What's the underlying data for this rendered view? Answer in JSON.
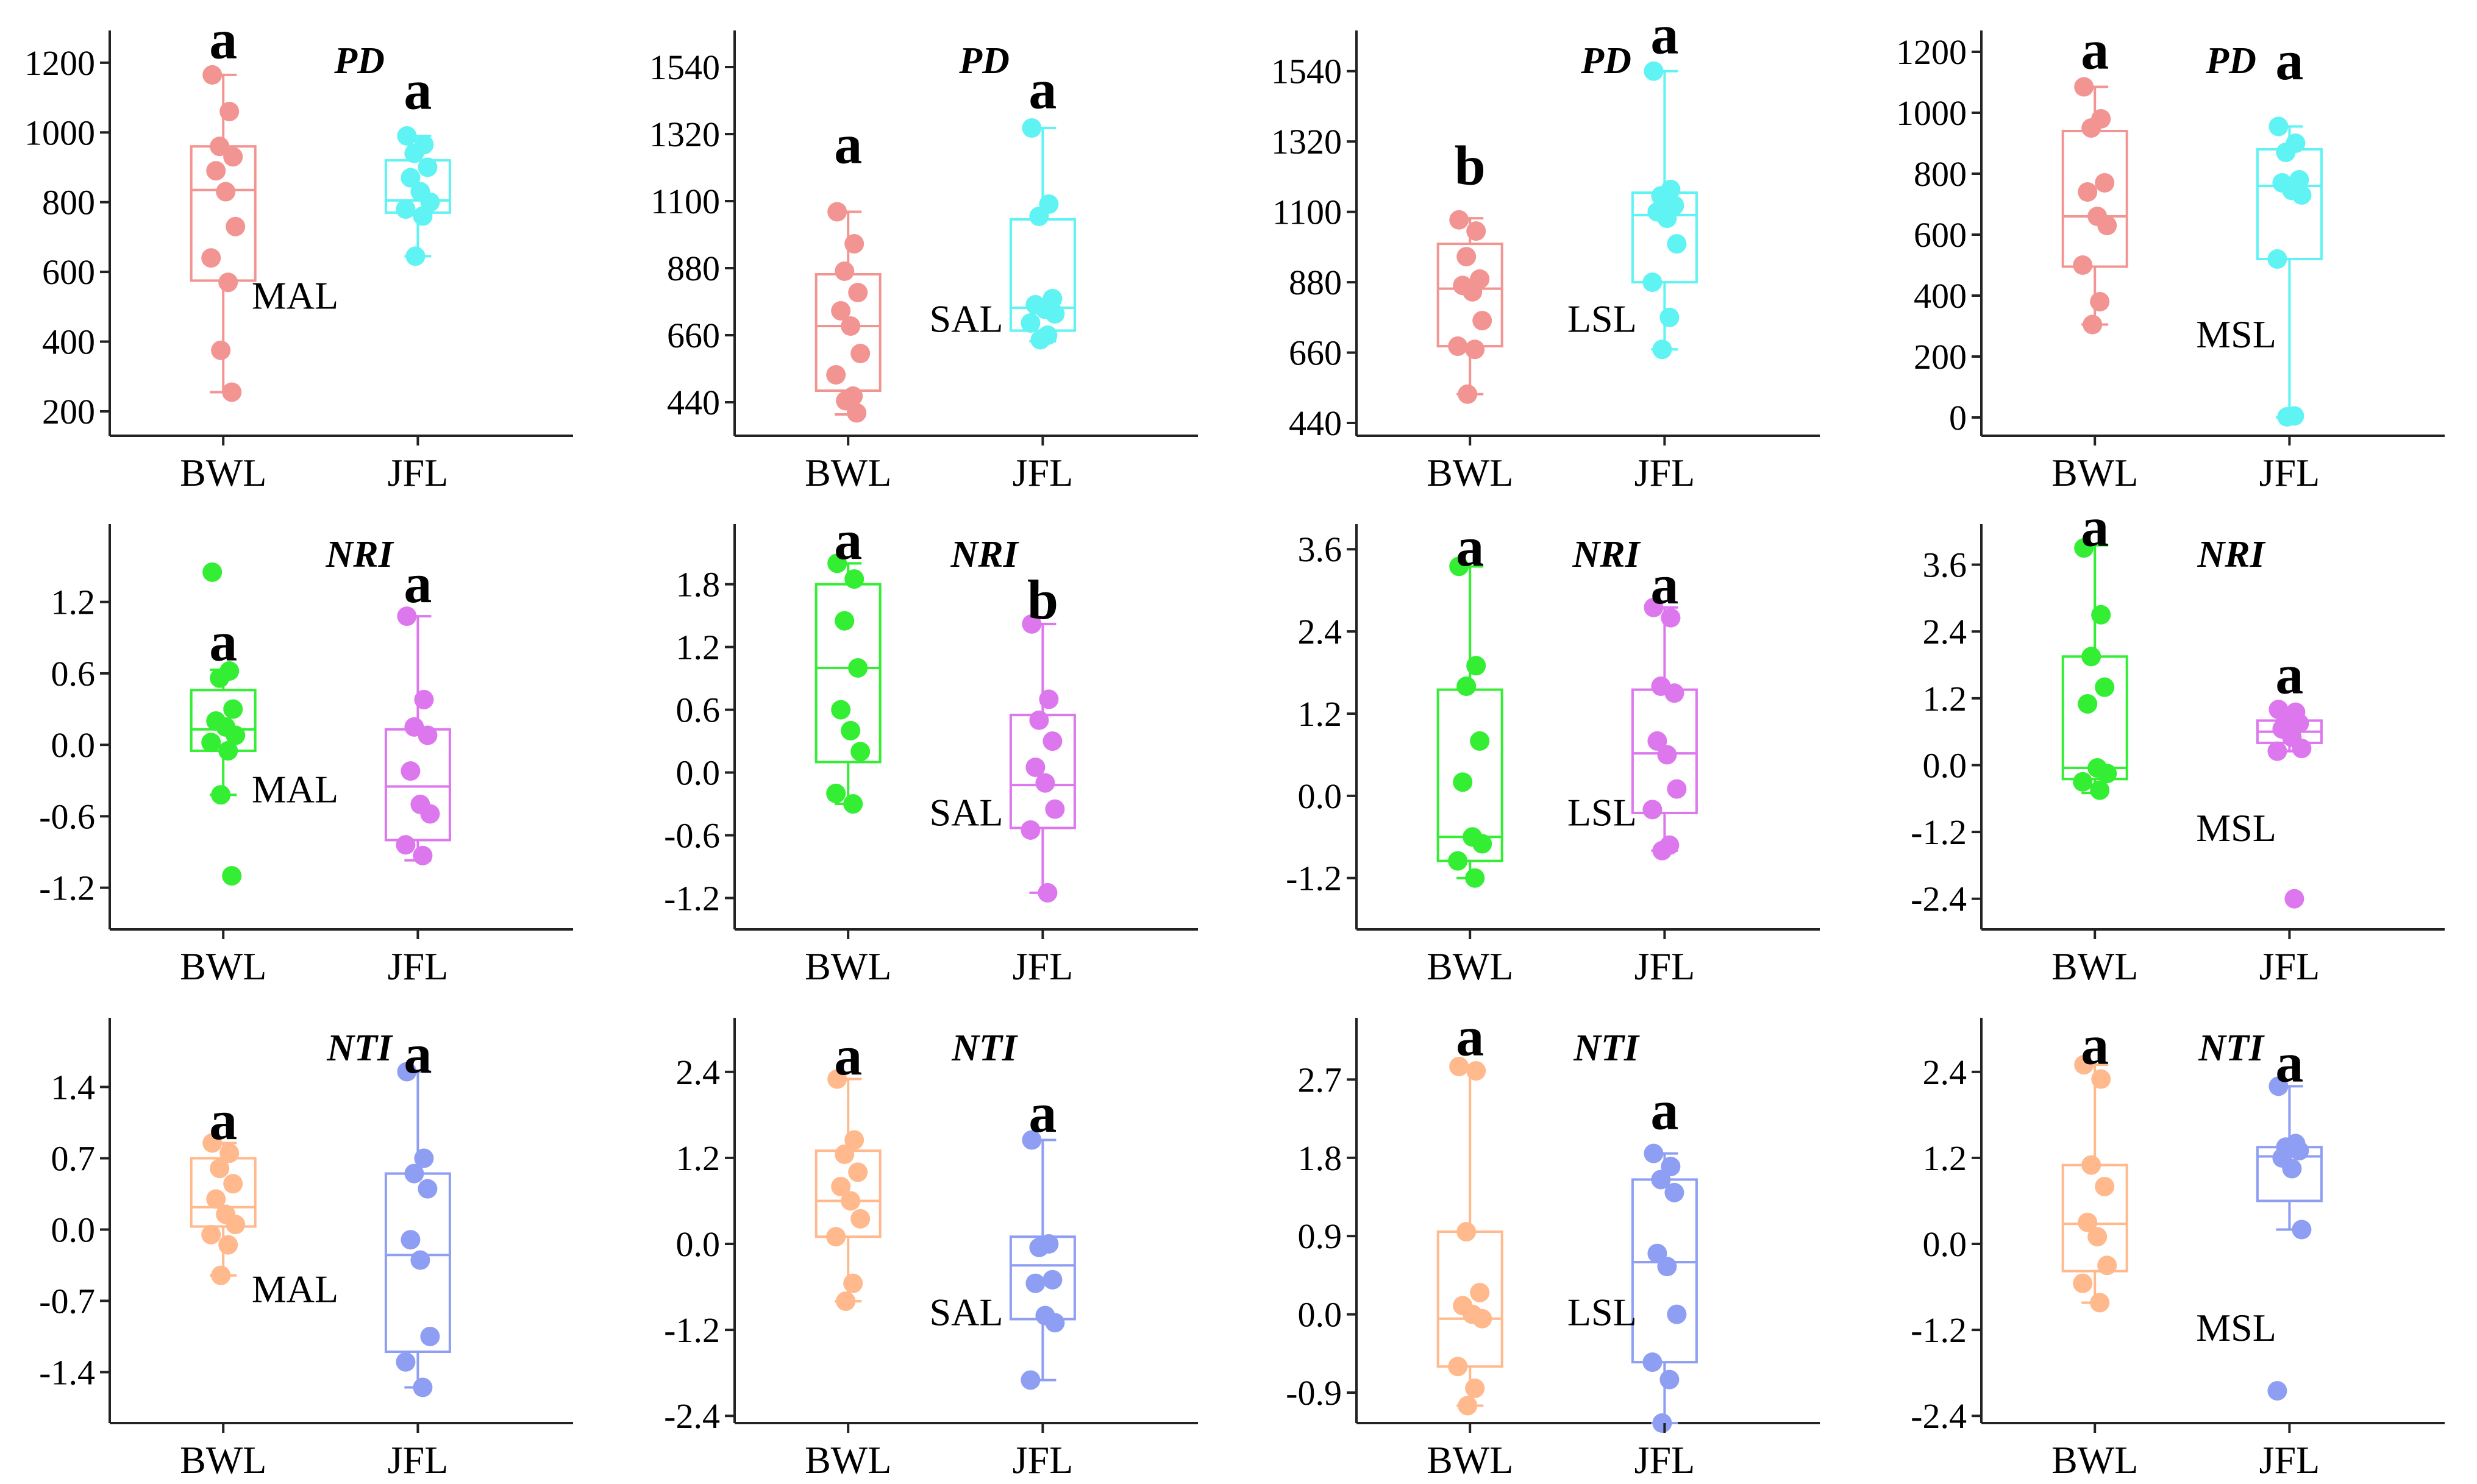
{
  "chart_data": [
    {
      "type": "box",
      "metric": "PD",
      "site": "MAL",
      "categories": [
        "BWL",
        "JFL"
      ],
      "ylim": [
        130,
        1240
      ],
      "yticks": [
        200,
        400,
        600,
        800,
        1000,
        1200
      ],
      "series": [
        {
          "name": "BWL",
          "color": "#F29592",
          "q1": 575,
          "median": 835,
          "q3": 960,
          "min": 255,
          "max": 1165,
          "points": [
            1165,
            1060,
            960,
            930,
            890,
            830,
            730,
            640,
            570,
            375,
            255
          ],
          "letter": "a",
          "letter_y": 1230
        },
        {
          "name": "JFL",
          "color": "#5FF3F3",
          "q1": 770,
          "median": 805,
          "q3": 920,
          "min": 645,
          "max": 990,
          "points": [
            990,
            965,
            940,
            900,
            870,
            830,
            800,
            780,
            760,
            645
          ],
          "letter": "a",
          "letter_y": 1085
        }
      ]
    },
    {
      "type": "box",
      "metric": "PD",
      "site": "SAL",
      "categories": [
        "BWL",
        "JFL"
      ],
      "ylim": [
        330,
        1600
      ],
      "yticks": [
        440,
        660,
        880,
        1100,
        1320,
        1540
      ],
      "series": [
        {
          "name": "BWL",
          "color": "#F29592",
          "q1": 478,
          "median": 690,
          "q3": 860,
          "min": 400,
          "max": 1065,
          "points": [
            1065,
            960,
            870,
            800,
            740,
            690,
            600,
            530,
            460,
            445,
            405
          ],
          "letter": "a",
          "letter_y": 1245
        },
        {
          "name": "JFL",
          "color": "#5FF3F3",
          "q1": 675,
          "median": 750,
          "q3": 1040,
          "min": 640,
          "max": 1340,
          "points": [
            1340,
            1090,
            1050,
            780,
            760,
            745,
            730,
            700,
            660,
            645
          ],
          "letter": "a",
          "letter_y": 1425
        }
      ]
    },
    {
      "type": "box",
      "metric": "PD",
      "site": "LSL",
      "categories": [
        "BWL",
        "JFL"
      ],
      "ylim": [
        400,
        1610
      ],
      "yticks": [
        440,
        660,
        880,
        1100,
        1320,
        1540
      ],
      "series": [
        {
          "name": "BWL",
          "color": "#F29592",
          "q1": 680,
          "median": 860,
          "q3": 1000,
          "min": 530,
          "max": 1080,
          "points": [
            1075,
            1040,
            960,
            890,
            870,
            850,
            760,
            680,
            670,
            530
          ],
          "letter": "b",
          "letter_y": 1205
        },
        {
          "name": "JFL",
          "color": "#5FF3F3",
          "q1": 880,
          "median": 1090,
          "q3": 1160,
          "min": 670,
          "max": 1540,
          "points": [
            1540,
            1170,
            1150,
            1120,
            1100,
            1080,
            1000,
            880,
            770,
            670
          ],
          "letter": "a",
          "letter_y": 1615
        }
      ]
    },
    {
      "type": "box",
      "metric": "PD",
      "site": "MSL",
      "categories": [
        "BWL",
        "JFL"
      ],
      "ylim": [
        -60,
        1210
      ],
      "yticks": [
        0,
        200,
        400,
        600,
        800,
        1000,
        1200
      ],
      "series": [
        {
          "name": "BWL",
          "color": "#F29592",
          "q1": 495,
          "median": 660,
          "q3": 940,
          "min": 305,
          "max": 1085,
          "points": [
            1085,
            980,
            950,
            770,
            740,
            660,
            630,
            500,
            380,
            305
          ],
          "letter": "a",
          "letter_y": 1165
        },
        {
          "name": "JFL",
          "color": "#5FF3F3",
          "q1": 520,
          "median": 760,
          "q3": 880,
          "min": 0,
          "max": 955,
          "points": [
            955,
            900,
            870,
            780,
            770,
            745,
            730,
            520,
            5,
            2
          ],
          "letter": "a",
          "letter_y": 1130
        }
      ]
    },
    {
      "type": "box",
      "metric": "NRI",
      "site": "MAL",
      "categories": [
        "BWL",
        "JFL"
      ],
      "ylim": [
        -1.55,
        1.7
      ],
      "yticks": [
        -1.2,
        -0.6,
        0.0,
        0.6,
        1.2
      ],
      "series": [
        {
          "name": "BWL",
          "color": "#33EE33",
          "q1": -0.05,
          "median": 0.13,
          "q3": 0.46,
          "min": -0.42,
          "max": 0.63,
          "points": [
            1.45,
            0.62,
            0.56,
            0.3,
            0.2,
            0.15,
            0.08,
            0.02,
            -0.05,
            -0.42,
            -1.1
          ],
          "letter": "a",
          "letter_y": 0.76
        },
        {
          "name": "JFL",
          "color": "#DD77EE",
          "q1": -0.8,
          "median": -0.35,
          "q3": 0.13,
          "min": -0.97,
          "max": 1.08,
          "points": [
            1.08,
            0.38,
            0.15,
            0.08,
            -0.22,
            -0.5,
            -0.58,
            -0.84,
            -0.93
          ],
          "letter": "a",
          "letter_y": 1.25
        }
      ]
    },
    {
      "type": "box",
      "metric": "NRI",
      "site": "SAL",
      "categories": [
        "BWL",
        "JFL"
      ],
      "ylim": [
        -1.5,
        2.2
      ],
      "yticks": [
        -1.2,
        -0.6,
        0.0,
        0.6,
        1.2,
        1.8
      ],
      "series": [
        {
          "name": "BWL",
          "color": "#33EE33",
          "q1": 0.1,
          "median": 1.0,
          "q3": 1.8,
          "min": -0.3,
          "max": 2.0,
          "points": [
            2.0,
            1.85,
            1.45,
            1.0,
            0.6,
            0.4,
            0.2,
            -0.2,
            -0.3
          ],
          "letter": "a",
          "letter_y": 2.1
        },
        {
          "name": "JFL",
          "color": "#DD77EE",
          "q1": -0.53,
          "median": -0.12,
          "q3": 0.55,
          "min": -1.15,
          "max": 1.42,
          "points": [
            1.42,
            0.7,
            0.5,
            0.3,
            0.05,
            -0.1,
            -0.35,
            -0.55,
            -1.15
          ],
          "letter": "b",
          "letter_y": 1.53
        }
      ]
    },
    {
      "type": "box",
      "metric": "NRI",
      "site": "LSL",
      "categories": [
        "BWL",
        "JFL"
      ],
      "ylim": [
        -1.95,
        3.7
      ],
      "yticks": [
        -1.2,
        0.0,
        1.2,
        2.4,
        3.6
      ],
      "series": [
        {
          "name": "BWL",
          "color": "#33EE33",
          "q1": -0.95,
          "median": -0.6,
          "q3": 1.55,
          "min": -1.2,
          "max": 3.35,
          "points": [
            3.35,
            1.9,
            1.6,
            0.8,
            0.2,
            -0.6,
            -0.7,
            -0.95,
            -1.2
          ],
          "letter": "a",
          "letter_y": 3.45
        },
        {
          "name": "JFL",
          "color": "#DD77EE",
          "q1": -0.25,
          "median": 0.62,
          "q3": 1.55,
          "min": -0.8,
          "max": 2.75,
          "points": [
            2.75,
            2.6,
            1.6,
            1.5,
            0.8,
            0.6,
            0.1,
            -0.2,
            -0.72,
            -0.8
          ],
          "letter": "a",
          "letter_y": 2.9
        }
      ]
    },
    {
      "type": "box",
      "metric": "NRI",
      "site": "MSL",
      "categories": [
        "BWL",
        "JFL"
      ],
      "ylim": [
        -2.95,
        4.0
      ],
      "yticks": [
        -2.4,
        -1.2,
        0.0,
        1.2,
        2.4,
        3.6
      ],
      "series": [
        {
          "name": "BWL",
          "color": "#33EE33",
          "q1": -0.25,
          "median": -0.05,
          "q3": 1.95,
          "min": -0.5,
          "max": 3.95,
          "points": [
            3.9,
            2.7,
            1.95,
            1.4,
            1.1,
            -0.05,
            -0.15,
            -0.3,
            -0.45
          ],
          "letter": "a",
          "letter_y": 4.05
        },
        {
          "name": "JFL",
          "color": "#DD77EE",
          "q1": 0.4,
          "median": 0.6,
          "q3": 0.8,
          "min": 0.25,
          "max": 1.0,
          "points": [
            1.0,
            0.95,
            0.85,
            0.75,
            0.65,
            0.5,
            0.3,
            0.25,
            -2.4
          ],
          "letter": "a",
          "letter_y": 1.4
        }
      ]
    },
    {
      "type": "box",
      "metric": "NTI",
      "site": "MAL",
      "categories": [
        "BWL",
        "JFL"
      ],
      "ylim": [
        -1.9,
        1.9
      ],
      "yticks": [
        -1.4,
        -0.7,
        0.0,
        0.7,
        1.4
      ],
      "series": [
        {
          "name": "BWL",
          "color": "#FFB98C",
          "q1": 0.03,
          "median": 0.22,
          "q3": 0.7,
          "min": -0.45,
          "max": 0.85,
          "points": [
            0.85,
            0.75,
            0.6,
            0.45,
            0.3,
            0.15,
            0.05,
            -0.05,
            -0.15,
            -0.45
          ],
          "letter": "a",
          "letter_y": 0.95
        },
        {
          "name": "JFL",
          "color": "#8E9EF2",
          "q1": -1.2,
          "median": -0.25,
          "q3": 0.55,
          "min": -1.55,
          "max": 1.55,
          "points": [
            1.55,
            0.7,
            0.55,
            0.4,
            -0.1,
            -0.3,
            -1.05,
            -1.3,
            -1.55
          ],
          "letter": "a",
          "letter_y": 1.6
        }
      ]
    },
    {
      "type": "box",
      "metric": "NTI",
      "site": "SAL",
      "categories": [
        "BWL",
        "JFL"
      ],
      "ylim": [
        -2.5,
        2.9
      ],
      "yticks": [
        -2.4,
        -1.2,
        0.0,
        1.2,
        2.4
      ],
      "series": [
        {
          "name": "BWL",
          "color": "#FFB98C",
          "q1": 0.1,
          "median": 0.6,
          "q3": 1.3,
          "min": -0.8,
          "max": 2.3,
          "points": [
            2.3,
            1.45,
            1.25,
            1.0,
            0.8,
            0.6,
            0.35,
            0.1,
            -0.55,
            -0.8
          ],
          "letter": "a",
          "letter_y": 2.45
        },
        {
          "name": "JFL",
          "color": "#8E9EF2",
          "q1": -1.05,
          "median": -0.3,
          "q3": 0.1,
          "min": -1.9,
          "max": 1.45,
          "points": [
            1.45,
            0.0,
            -0.05,
            -0.5,
            -0.55,
            -1.0,
            -1.1,
            -1.9
          ],
          "letter": "a",
          "letter_y": 1.65
        }
      ]
    },
    {
      "type": "box",
      "metric": "NTI",
      "site": "LSL",
      "categories": [
        "BWL",
        "JFL"
      ],
      "ylim": [
        -1.25,
        3.2
      ],
      "yticks": [
        -0.9,
        0.0,
        0.9,
        1.8,
        2.7
      ],
      "series": [
        {
          "name": "BWL",
          "color": "#FFB98C",
          "q1": -0.6,
          "median": -0.05,
          "q3": 0.95,
          "min": -1.05,
          "max": 2.85,
          "points": [
            2.85,
            2.8,
            0.95,
            0.25,
            0.1,
            0.0,
            -0.05,
            -0.6,
            -0.85,
            -1.05
          ],
          "letter": "a",
          "letter_y": 3.05
        },
        {
          "name": "JFL",
          "color": "#8E9EF2",
          "q1": -0.55,
          "median": 0.6,
          "q3": 1.55,
          "min": -1.25,
          "max": 1.85,
          "points": [
            1.85,
            1.7,
            1.55,
            1.4,
            0.7,
            0.55,
            0.0,
            -0.55,
            -0.75,
            -1.25
          ],
          "letter": "a",
          "letter_y": 2.2
        }
      ]
    },
    {
      "type": "box",
      "metric": "NTI",
      "site": "MSL",
      "categories": [
        "BWL",
        "JFL"
      ],
      "ylim": [
        -2.5,
        2.9
      ],
      "yticks": [
        -2.4,
        -1.2,
        0.0,
        1.2,
        2.4
      ],
      "series": [
        {
          "name": "BWL",
          "color": "#FFB98C",
          "q1": -0.38,
          "median": 0.28,
          "q3": 1.1,
          "min": -0.82,
          "max": 2.5,
          "points": [
            2.5,
            2.3,
            1.1,
            0.8,
            0.3,
            0.1,
            -0.3,
            -0.55,
            -0.82
          ],
          "letter": "a",
          "letter_y": 2.6
        },
        {
          "name": "JFL",
          "color": "#8E9EF2",
          "q1": 0.6,
          "median": 1.22,
          "q3": 1.35,
          "min": 0.2,
          "max": 2.2,
          "points": [
            2.2,
            1.4,
            1.35,
            1.3,
            1.2,
            1.05,
            0.2,
            -2.05
          ],
          "letter": "a",
          "letter_y": 2.35
        }
      ]
    }
  ]
}
